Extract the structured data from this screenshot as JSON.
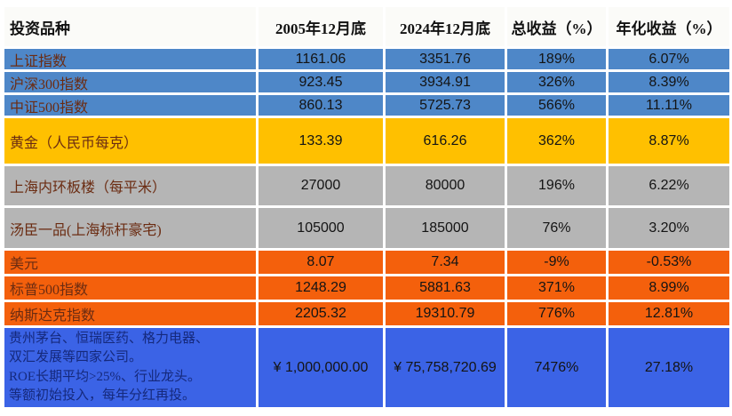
{
  "chart_data": {
    "type": "table",
    "title": "",
    "columns": [
      "投资品种",
      "2005年12月底",
      "2024年12月底",
      "总收益（%）",
      "年化收益（%）"
    ],
    "rows": [
      {
        "label": "上证指数",
        "values": [
          "1161.06",
          "3351.76",
          "189%",
          "6.07%"
        ],
        "group": "china-index",
        "fill": "#4e87c8"
      },
      {
        "label": "沪深300指数",
        "values": [
          "923.45",
          "3934.91",
          "326%",
          "8.39%"
        ],
        "group": "china-index",
        "fill": "#4e87c8"
      },
      {
        "label": "中证500指数",
        "values": [
          "860.13",
          "5725.73",
          "566%",
          "11.11%"
        ],
        "group": "china-index",
        "fill": "#4e87c8"
      },
      {
        "label": "黄金（人民币每克）",
        "values": [
          "133.39",
          "616.26",
          "362%",
          "8.87%"
        ],
        "group": "gold",
        "fill": "#ffc000"
      },
      {
        "label": "上海内环板楼（每平米）",
        "values": [
          "27000",
          "80000",
          "196%",
          "6.22%"
        ],
        "group": "real-estate",
        "fill": "#b5b5b5"
      },
      {
        "label": "汤臣一品(上海标杆豪宅)",
        "values": [
          "105000",
          "185000",
          "76%",
          "3.20%"
        ],
        "group": "real-estate",
        "fill": "#b5b5b5"
      },
      {
        "label": "美元",
        "values": [
          "8.07",
          "7.34",
          "-9%",
          "-0.53%"
        ],
        "group": "us-assets",
        "fill": "#f4600c"
      },
      {
        "label": "标普500指数",
        "values": [
          "1248.29",
          "5881.63",
          "371%",
          "8.99%"
        ],
        "group": "us-assets",
        "fill": "#f4600c"
      },
      {
        "label": "纳斯达克指数",
        "values": [
          "2205.32",
          "19310.79",
          "776%",
          "12.81%"
        ],
        "group": "us-assets",
        "fill": "#f4600c"
      },
      {
        "label_lines": [
          "贵州茅台、恒瑞医药、格力电器、",
          "双汇发展等四家公司。",
          "ROE长期平均>25%、行业龙头。",
          "等额初始投入，每年分红再投。"
        ],
        "values": [
          "¥ 1,000,000.00",
          "¥ 75,758,720.69",
          "7476%",
          "27.18%"
        ],
        "group": "stock-portfolio",
        "fill": "#3b63e6"
      }
    ],
    "layout": {
      "grid": "white-gaps",
      "legend": "none"
    }
  },
  "colors": {
    "china_index_blue": "#4e87c8",
    "gold_yellow": "#ffc000",
    "real_estate_gray": "#b5b5b5",
    "us_assets_orange": "#f4600c",
    "portfolio_royal_blue": "#3b63e6",
    "label_text": "#6b2c12",
    "portfolio_label_text": "#15297c",
    "value_text": "#141414",
    "header_text": "#111111"
  }
}
